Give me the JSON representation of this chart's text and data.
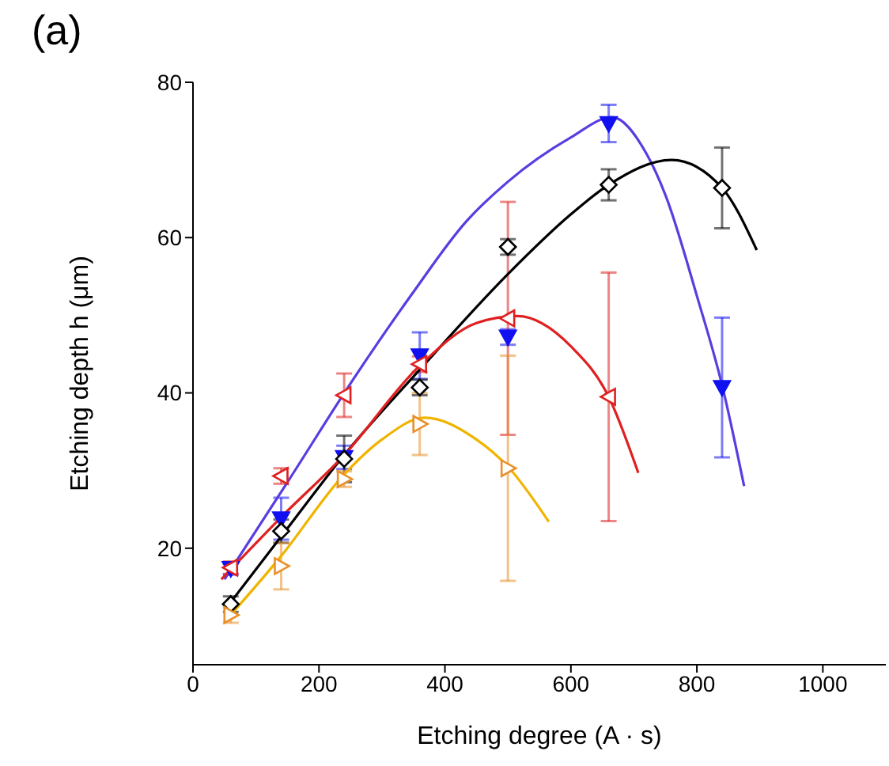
{
  "chart_data": {
    "type": "scatter",
    "title": "(a)",
    "xlabel": "Etching degree (A · s)",
    "ylabel": "Etching depth h (μm)",
    "xlim": [
      0,
      1100
    ],
    "xticks": [
      0,
      200,
      400,
      600,
      800,
      1000
    ],
    "ylim": [
      5,
      80
    ],
    "yticks": [
      20,
      40,
      60,
      80
    ],
    "series": [
      {
        "color": "#1010f0",
        "marker": "triangle-down",
        "x": [
          60,
          140,
          240,
          360,
          500,
          660,
          840
        ],
        "values": [
          17.4,
          23.8,
          31.7,
          44.8,
          47.2,
          74.7,
          40.7
        ],
        "errors": [
          0.8,
          2.7,
          1.5,
          3,
          1,
          2.4,
          9
        ]
      },
      {
        "color": "#000000",
        "marker": "diamond",
        "x": [
          60,
          140,
          240,
          360,
          500,
          660,
          840
        ],
        "values": [
          12.8,
          22.2,
          31.5,
          40.7,
          58.8,
          66.8,
          66.4
        ],
        "errors": [
          1,
          1.5,
          3,
          1,
          1,
          2,
          5.2
        ]
      },
      {
        "color": "#e02020",
        "marker": "triangle-left",
        "x": [
          60,
          140,
          240,
          360,
          500,
          660
        ],
        "values": [
          17.5,
          29.3,
          39.7,
          43.7,
          49.6,
          39.5
        ],
        "errors": [
          0.8,
          1,
          2.8,
          1,
          15,
          16
        ]
      },
      {
        "color": "#e8902a",
        "marker": "triangle-right",
        "x": [
          60,
          140,
          240,
          360,
          500
        ],
        "values": [
          11.4,
          17.7,
          28.9,
          36,
          30.3
        ],
        "errors": [
          1,
          3,
          1,
          4,
          14.5
        ]
      },
      {
        "type": "line",
        "color": "#5a3de0",
        "marker": "none",
        "x": [
          50,
          150,
          254,
          350,
          433,
          500,
          600,
          665,
          720,
          750,
          800,
          840,
          875
        ],
        "values": [
          16,
          28.5,
          41.7,
          53,
          62,
          67.2,
          72.9,
          75.5,
          70.8,
          65.5,
          52.5,
          41,
          28
        ]
      },
      {
        "type": "line",
        "color": "#000000",
        "marker": "none",
        "x": [
          50,
          140,
          240,
          360,
          500,
          600,
          660,
          760,
          840,
          895
        ],
        "values": [
          12,
          21.5,
          32,
          43,
          55.3,
          63,
          66.8,
          70,
          66.4,
          58.4
        ]
      },
      {
        "type": "line",
        "color": "#e02020",
        "marker": "none",
        "x": [
          45,
          140,
          240,
          360,
          450,
          515,
          600,
          660,
          707
        ],
        "values": [
          16,
          24,
          32,
          43.5,
          49,
          49.9,
          46,
          39.5,
          29.7
        ]
      },
      {
        "type": "line",
        "color": "#f0b400",
        "marker": "none",
        "x": [
          50,
          140,
          240,
          300,
          368,
          450,
          500,
          565
        ],
        "values": [
          10.5,
          19,
          29.5,
          34,
          36.8,
          34,
          30.5,
          23.4
        ]
      }
    ]
  }
}
